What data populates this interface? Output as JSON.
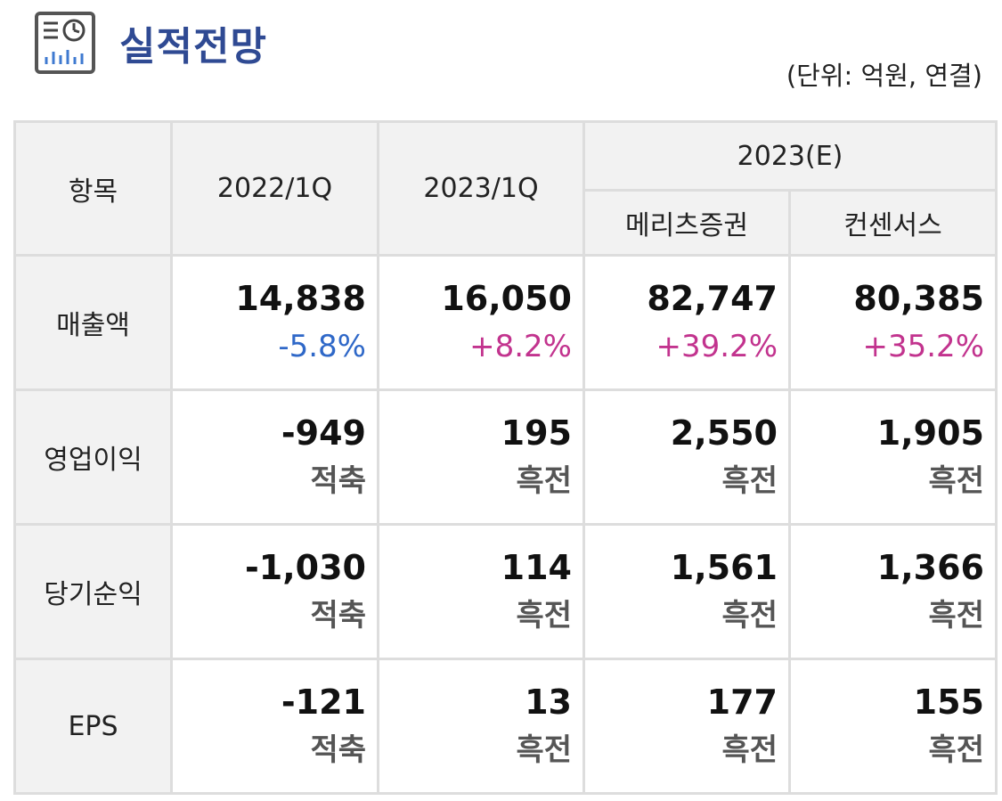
{
  "header": {
    "title": "실적전망",
    "unit": "(단위: 억원, 연결)",
    "icon": "report-chart-icon"
  },
  "table": {
    "col_item": "항목",
    "col_2022": "2022/1Q",
    "col_2023": "2023/1Q",
    "col_est": "2023(E)",
    "col_meritz": "메리츠증권",
    "col_consensus": "컨센서스",
    "rows": [
      {
        "label": "매출액",
        "cells": [
          {
            "value": "14,838",
            "change": "-5.8%"
          },
          {
            "value": "16,050",
            "change": "+8.2%"
          },
          {
            "value": "82,747",
            "change": "+39.2%"
          },
          {
            "value": "80,385",
            "change": "+35.2%"
          }
        ]
      },
      {
        "label": "영업이익",
        "cells": [
          {
            "value": "-949",
            "change": "적축"
          },
          {
            "value": "195",
            "change": "흑전"
          },
          {
            "value": "2,550",
            "change": "흑전"
          },
          {
            "value": "1,905",
            "change": "흑전"
          }
        ]
      },
      {
        "label": "당기순익",
        "cells": [
          {
            "value": "-1,030",
            "change": "적축"
          },
          {
            "value": "114",
            "change": "흑전"
          },
          {
            "value": "1,561",
            "change": "흑전"
          },
          {
            "value": "1,366",
            "change": "흑전"
          }
        ]
      },
      {
        "label": "EPS",
        "cells": [
          {
            "value": "-121",
            "change": "적축"
          },
          {
            "value": "13",
            "change": "흑전"
          },
          {
            "value": "177",
            "change": "흑전"
          },
          {
            "value": "155",
            "change": "흑전"
          }
        ]
      }
    ]
  },
  "colors": {
    "title": "#2f4a93",
    "negative": "#2f68c8",
    "positive": "#c2338e",
    "header_bg": "#f2f2f2",
    "border": "#dddddd"
  }
}
